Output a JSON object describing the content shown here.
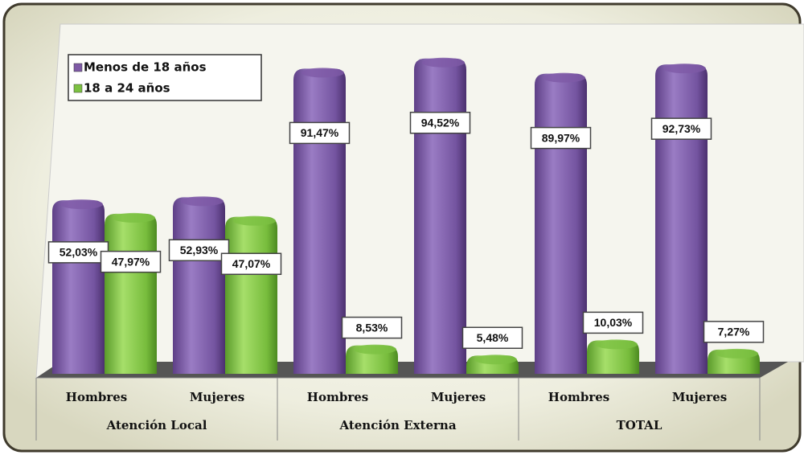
{
  "chart_data": {
    "type": "bar",
    "categories": [
      "Hombres",
      "Mujeres",
      "Hombres",
      "Mujeres",
      "Hombres",
      "Mujeres"
    ],
    "groups": [
      "Atención Local",
      "Atención Externa",
      "TOTAL"
    ],
    "series": [
      {
        "name": "Menos de 18 años",
        "color": "#7e5aa6",
        "values": [
          52.03,
          52.93,
          91.47,
          94.52,
          89.97,
          92.73
        ],
        "value_labels": [
          "52,03%",
          "52,93%",
          "91,47%",
          "94,52%",
          "89,97%",
          "92,73%"
        ]
      },
      {
        "name": "18 a 24 años",
        "color": "#7cc142",
        "values": [
          47.97,
          47.07,
          8.53,
          5.48,
          10.03,
          7.27
        ],
        "value_labels": [
          "47,97%",
          "47,07%",
          "8,53%",
          "5,48%",
          "10,03%",
          "7,27%"
        ]
      }
    ],
    "ylim": [
      0,
      100
    ],
    "legend": "top-left"
  }
}
